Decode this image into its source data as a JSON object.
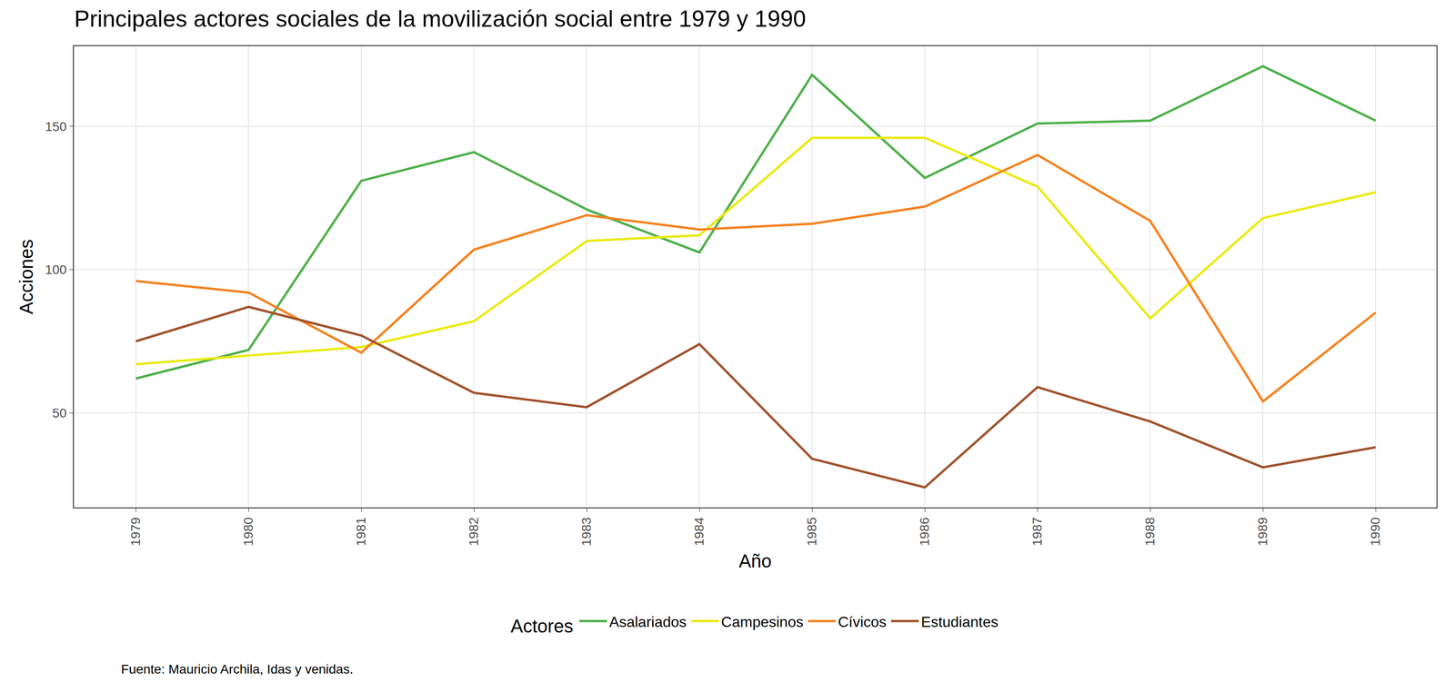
{
  "chart_data": {
    "type": "line",
    "title": "Principales actores sociales de la movilización social entre 1979 y 1990",
    "x_label": "Año",
    "y_label": "Acciones",
    "legend_title": "Actores",
    "caption": "Fuente: Mauricio Archila, Idas y venidas.",
    "x": [
      1979,
      1980,
      1981,
      1982,
      1983,
      1984,
      1985,
      1986,
      1987,
      1988,
      1989,
      1990
    ],
    "series": [
      {
        "name": "Asalariados",
        "color": "#4daf4a",
        "values": [
          62,
          72,
          131,
          141,
          121,
          106,
          168,
          132,
          151,
          152,
          171,
          152
        ]
      },
      {
        "name": "Campesinos",
        "color": "#eaea12",
        "values": [
          67,
          70,
          73,
          82,
          110,
          112,
          146,
          146,
          129,
          83,
          118,
          127
        ]
      },
      {
        "name": "Cívicos",
        "color": "#f5821f",
        "values": [
          96,
          92,
          71,
          107,
          119,
          114,
          116,
          122,
          140,
          117,
          54,
          85
        ]
      },
      {
        "name": "Estudiantes",
        "color": "#a0522d",
        "values": [
          75,
          87,
          77,
          57,
          52,
          74,
          34,
          24,
          59,
          47,
          31,
          38
        ]
      }
    ],
    "xlim": [
      1978.45,
      1990.54
    ],
    "xticks": [
      1979,
      1980,
      1981,
      1982,
      1983,
      1984,
      1985,
      1986,
      1987,
      1988,
      1989,
      1990
    ],
    "ylim": [
      17,
      178
    ],
    "yticks": [
      50,
      100,
      150
    ],
    "grid": true,
    "legend": "bottom"
  }
}
